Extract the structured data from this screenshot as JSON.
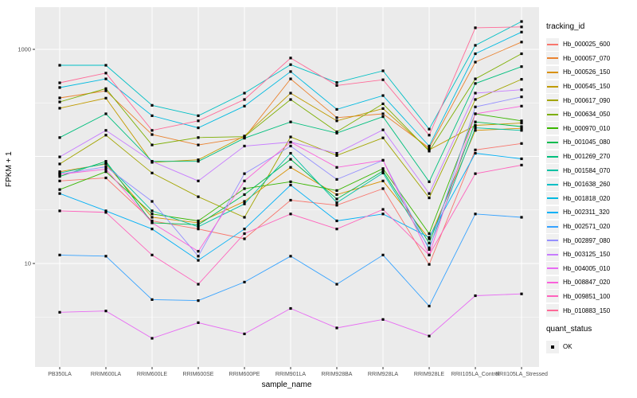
{
  "figure": {
    "y_axis_title": "FPKM + 1",
    "x_axis_title": "sample_name",
    "quant_status": {
      "title": "quant_status",
      "items": [
        {
          "label": "OK",
          "marker": "black-square"
        }
      ]
    },
    "colors": {
      "panel_background": "#EBEBEB",
      "grid_major": "#FFFFFF",
      "grid_minor": "#FFFFFF",
      "tick_text": "#4D4D4D",
      "tick_mark": "#333333",
      "point": "#000000",
      "legend_key_background": "#F0F0F0"
    }
  },
  "chart_data": {
    "type": "line",
    "title": "",
    "xlabel": "sample_name",
    "ylabel": "FPKM + 1",
    "legend_title": "tracking_id",
    "legend_position": "right",
    "grid": true,
    "y_scale": "log10",
    "ylim": [
      1,
      2500
    ],
    "y_ticks": [
      1000,
      10
    ],
    "y_minor_gridlines": [
      316.2,
      31.62,
      3.162
    ],
    "y_major_gridlines": [
      1000,
      100,
      10
    ],
    "point_marker": "black-square",
    "categories": [
      "PB350LA",
      "RRIM600LA",
      "RRIM600LE",
      "RRIM600SE",
      "RRIM600PE",
      "RRIM901LA",
      "RRIM928BA",
      "RRIM928LA",
      "RRIM928LE",
      "RRII105LA_Control",
      "RRII105LA_Stressed"
    ],
    "series": [
      {
        "name": "Hb_000025_600",
        "color": "#F8766D",
        "values": [
          59,
          63,
          25,
          21,
          17,
          39,
          35,
          50,
          9.8,
          115,
          132
        ]
      },
      {
        "name": "Hb_000057_070",
        "color": "#EA8331",
        "values": [
          352,
          410,
          160,
          128,
          150,
          530,
          230,
          250,
          120,
          760,
          1170
        ]
      },
      {
        "name": "Hb_000526_150",
        "color": "#D89000",
        "values": [
          72,
          85,
          27,
          24,
          38,
          79,
          44,
          59,
          17,
          175,
          183
        ]
      },
      {
        "name": "Hb_000545_150",
        "color": "#C09B00",
        "values": [
          282,
          350,
          88,
          93,
          155,
          390,
          215,
          280,
          115,
          195,
          205
        ]
      },
      {
        "name": "Hb_000617_090",
        "color": "#A3A500",
        "values": [
          85,
          158,
          70,
          42,
          27,
          152,
          102,
          149,
          41,
          340,
          525
        ]
      },
      {
        "name": "Hb_000634_050",
        "color": "#7CAE00",
        "values": [
          323,
          430,
          128,
          150,
          153,
          340,
          170,
          310,
          112,
          530,
          910
        ]
      },
      {
        "name": "Hb_000970_010",
        "color": "#39B600",
        "values": [
          49,
          72,
          29,
          25,
          50,
          58,
          48,
          77,
          19,
          250,
          215
        ]
      },
      {
        "name": "Hb_001045_080",
        "color": "#00BB4E",
        "values": [
          65,
          90,
          24,
          23,
          44,
          94,
          40,
          73,
          15.5,
          210,
          190
        ]
      },
      {
        "name": "Hb_001269_270",
        "color": "#00BF7D",
        "values": [
          150,
          250,
          90,
          90,
          148,
          210,
          165,
          235,
          58,
          480,
          690
        ]
      },
      {
        "name": "Hb_001584_070",
        "color": "#00C1A3",
        "values": [
          70,
          86,
          31,
          22,
          36,
          107,
          37,
          70,
          14,
          185,
          175
        ]
      },
      {
        "name": "Hb_001638_260",
        "color": "#00BFC4",
        "values": [
          710,
          710,
          300,
          240,
          390,
          720,
          490,
          630,
          180,
          1090,
          1820
        ]
      },
      {
        "name": "Hb_001818_020",
        "color": "#00BAE0",
        "values": [
          440,
          530,
          240,
          185,
          295,
          620,
          275,
          370,
          125,
          910,
          1450
        ]
      },
      {
        "name": "Hb_002311_320",
        "color": "#00B0F6",
        "values": [
          45,
          31,
          21,
          10.7,
          21,
          54,
          25,
          29,
          17.5,
          107,
          95
        ]
      },
      {
        "name": "Hb_002571_020",
        "color": "#35A2FF",
        "values": [
          12,
          11.7,
          4.6,
          4.5,
          6.7,
          11.7,
          6.4,
          12,
          4,
          29,
          27
        ]
      },
      {
        "name": "Hb_002897_080",
        "color": "#9590FF",
        "values": [
          68,
          80,
          38,
          11.7,
          69,
          125,
          61,
          92,
          13.5,
          290,
          360
        ]
      },
      {
        "name": "Hb_003125_150",
        "color": "#C77CFF",
        "values": [
          99,
          175,
          90,
          59,
          125,
          136,
          107,
          177,
          45,
          390,
          420
        ]
      },
      {
        "name": "Hb_004005_010",
        "color": "#E76BF3",
        "values": [
          3.5,
          3.6,
          2,
          2.8,
          2.2,
          3.8,
          2.5,
          3,
          2.1,
          5,
          5.2
        ]
      },
      {
        "name": "Hb_008847_020",
        "color": "#FA62DB",
        "values": [
          68,
          76,
          24,
          13,
          59,
          136,
          79,
          92,
          12,
          250,
          295
        ]
      },
      {
        "name": "Hb_009851_100",
        "color": "#FF62BC",
        "values": [
          31,
          30,
          12,
          6.4,
          19,
          29,
          21,
          32,
          12,
          69,
          83
        ]
      },
      {
        "name": "Hb_010883_150",
        "color": "#FF6A98",
        "values": [
          487,
          600,
          175,
          215,
          340,
          830,
          460,
          520,
          158,
          1590,
          1620
        ]
      }
    ]
  }
}
